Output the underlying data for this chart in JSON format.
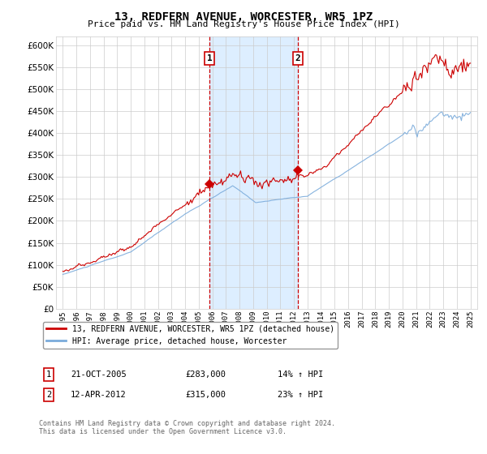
{
  "title": "13, REDFERN AVENUE, WORCESTER, WR5 1PZ",
  "subtitle": "Price paid vs. HM Land Registry's House Price Index (HPI)",
  "legend_line1": "13, REDFERN AVENUE, WORCESTER, WR5 1PZ (detached house)",
  "legend_line2": "HPI: Average price, detached house, Worcester",
  "footnote": "Contains HM Land Registry data © Crown copyright and database right 2024.\nThis data is licensed under the Open Government Licence v3.0.",
  "sale1_date": "21-OCT-2005",
  "sale1_price": 283000,
  "sale1_pct": "14% ↑ HPI",
  "sale2_date": "12-APR-2012",
  "sale2_price": 315000,
  "sale2_pct": "23% ↑ HPI",
  "sale1_year": 2005.8,
  "sale2_year": 2012.28,
  "hpi_color": "#7aabdb",
  "price_color": "#cc0000",
  "bg_color": "#ffffff",
  "shaded_color": "#ddeeff",
  "ylim_min": 0,
  "ylim_max": 620000,
  "xlim_min": 1994.5,
  "xlim_max": 2025.5,
  "yticks": [
    0,
    50000,
    100000,
    150000,
    200000,
    250000,
    300000,
    350000,
    400000,
    450000,
    500000,
    550000,
    600000
  ],
  "xticks": [
    1995,
    1996,
    1997,
    1998,
    1999,
    2000,
    2001,
    2002,
    2003,
    2004,
    2005,
    2006,
    2007,
    2008,
    2009,
    2010,
    2011,
    2012,
    2013,
    2014,
    2015,
    2016,
    2017,
    2018,
    2019,
    2020,
    2021,
    2022,
    2023,
    2024,
    2025
  ]
}
